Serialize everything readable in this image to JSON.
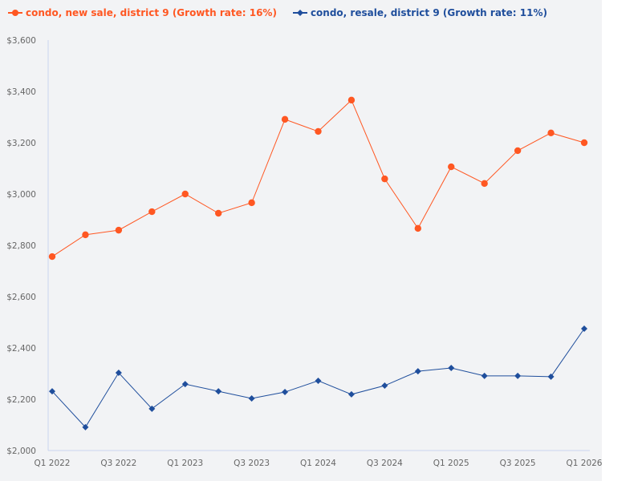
{
  "chart_data": {
    "type": "line",
    "categories": [
      "Q1 2022",
      "Q2 2022",
      "Q3 2022",
      "Q4 2022",
      "Q1 2023",
      "Q2 2023",
      "Q3 2023",
      "Q4 2023",
      "Q1 2024",
      "Q2 2024",
      "Q3 2024",
      "Q4 2024",
      "Q1 2025",
      "Q2 2025",
      "Q3 2025",
      "Q4 2025",
      "Q1 2026"
    ],
    "x_tick_labels": [
      "Q1 2022",
      "Q3 2022",
      "Q1 2023",
      "Q3 2023",
      "Q1 2024",
      "Q3 2024",
      "Q1 2025",
      "Q3 2025",
      "Q1 2026"
    ],
    "y_tick_labels": [
      "$2,000",
      "$2,200",
      "$2,400",
      "$2,600",
      "$2,800",
      "$3,000",
      "$3,200",
      "$3,400",
      "$3,600"
    ],
    "ylim": [
      2000,
      3600
    ],
    "grid": false,
    "legend_position": "top-left",
    "series": [
      {
        "name": "condo, new sale, district 9 (Growth rate: 16%)",
        "color": "#ff5722",
        "marker": "circle",
        "values": [
          2756,
          2841,
          2859,
          2931,
          3000,
          2925,
          2966,
          3291,
          3244,
          3366,
          3059,
          2866,
          3106,
          3041,
          3169,
          3238,
          3200
        ]
      },
      {
        "name": "condo, resale, district 9 (Growth rate: 11%)",
        "color": "#1f4e9c",
        "marker": "diamond",
        "values": [
          2231,
          2091,
          2303,
          2163,
          2259,
          2231,
          2203,
          2228,
          2272,
          2219,
          2253,
          2309,
          2322,
          2291,
          2291,
          2288,
          2475
        ]
      }
    ]
  }
}
